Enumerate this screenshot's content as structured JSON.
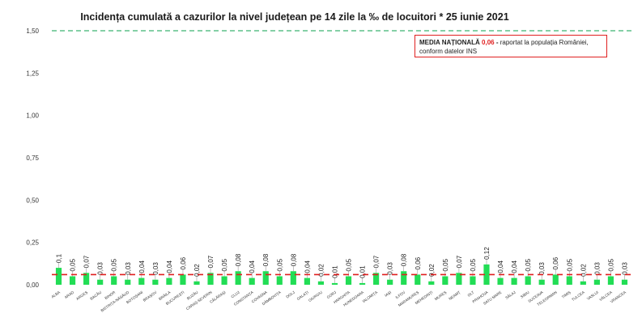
{
  "chart_data": {
    "type": "bar",
    "title": "Incidența cumulată a cazurilor la nivel județean pe 14 zile la ‰ de locuitori *  25 iunie 2021",
    "xlabel": "",
    "ylabel": "",
    "ylim": [
      0,
      1.5
    ],
    "yticks": [
      "0,00",
      "0,25",
      "0,50",
      "0,75",
      "1,00",
      "1,25",
      "1,50"
    ],
    "ytick_values": [
      0,
      0.25,
      0.5,
      0.75,
      1.0,
      1.25,
      1.5
    ],
    "categories": [
      "ALBA",
      "ARAD",
      "ARGEȘ",
      "BACĂU",
      "BIHOR",
      "BISTRIȚA-NĂSĂUD",
      "BOTOȘANI",
      "BRAȘOV",
      "BRĂILA",
      "BUCUREȘTI",
      "BUZĂU",
      "CARAȘ-SEVERIN",
      "CĂLĂRAȘI",
      "CLUJ",
      "CONSTANȚA",
      "COVASNA",
      "DÂMBOVIȚA",
      "DOLJ",
      "GALAȚI",
      "GIURGIU",
      "GORJ",
      "HARGHITA",
      "HUNEDOARA",
      "IALOMIȚA",
      "IAȘI",
      "ILFOV",
      "MARAMUREȘ",
      "MEHEDINȚI",
      "MUREȘ",
      "NEAMȚ",
      "OLT",
      "PRAHOVA",
      "SATU MARE",
      "SĂLAJ",
      "SIBIU",
      "SUCEAVA",
      "TELEORMAN",
      "TIMIȘ",
      "TULCEA",
      "VASLUI",
      "VÂLCEA",
      "VRANCEA"
    ],
    "values": [
      0.1,
      0.05,
      0.07,
      0.03,
      0.05,
      0.03,
      0.04,
      0.03,
      0.04,
      0.06,
      0.02,
      0.07,
      0.05,
      0.08,
      0.04,
      0.08,
      0.05,
      0.08,
      0.04,
      0.02,
      0.01,
      0.05,
      0.01,
      0.07,
      0.03,
      0.08,
      0.06,
      0.02,
      0.05,
      0.07,
      0.05,
      0.12,
      0.04,
      0.04,
      0.05,
      0.03,
      0.06,
      0.05,
      0.02,
      0.03,
      0.05,
      0.03
    ],
    "value_labels": [
      "0,1",
      "0,05",
      "0,07",
      "0,03",
      "0,05",
      "0,03",
      "0,04",
      "0,03",
      "0,04",
      "0,06",
      "0,02",
      "0,07",
      "0,05",
      "0,08",
      "0,04",
      "0,08",
      "0,05",
      "0,08",
      "0,04",
      "0,02",
      "0,01",
      "0,05",
      "0,01",
      "0,07",
      "0,03",
      "0,08",
      "0,06",
      "0,02",
      "0,05",
      "0,07",
      "0,05",
      "0,12",
      "0,04",
      "0,04",
      "0,05",
      "0,03",
      "0,06",
      "0,05",
      "0,02",
      "0,03",
      "0,05",
      "0,03"
    ],
    "reference_lines": [
      {
        "value": 1.5,
        "color": "#3cb371",
        "style": "dashed"
      },
      {
        "value": 0.06,
        "color": "#e02020",
        "style": "dashed"
      }
    ],
    "bar_color": "#22dd55",
    "grid": false,
    "legend": "top-right"
  },
  "legend": {
    "label": "MEDIA NAȚIONALĂ",
    "value": "0,06",
    "dash": " - ",
    "text_line1": "raportat la populația României,",
    "text_line2": "conform datelor INS"
  }
}
